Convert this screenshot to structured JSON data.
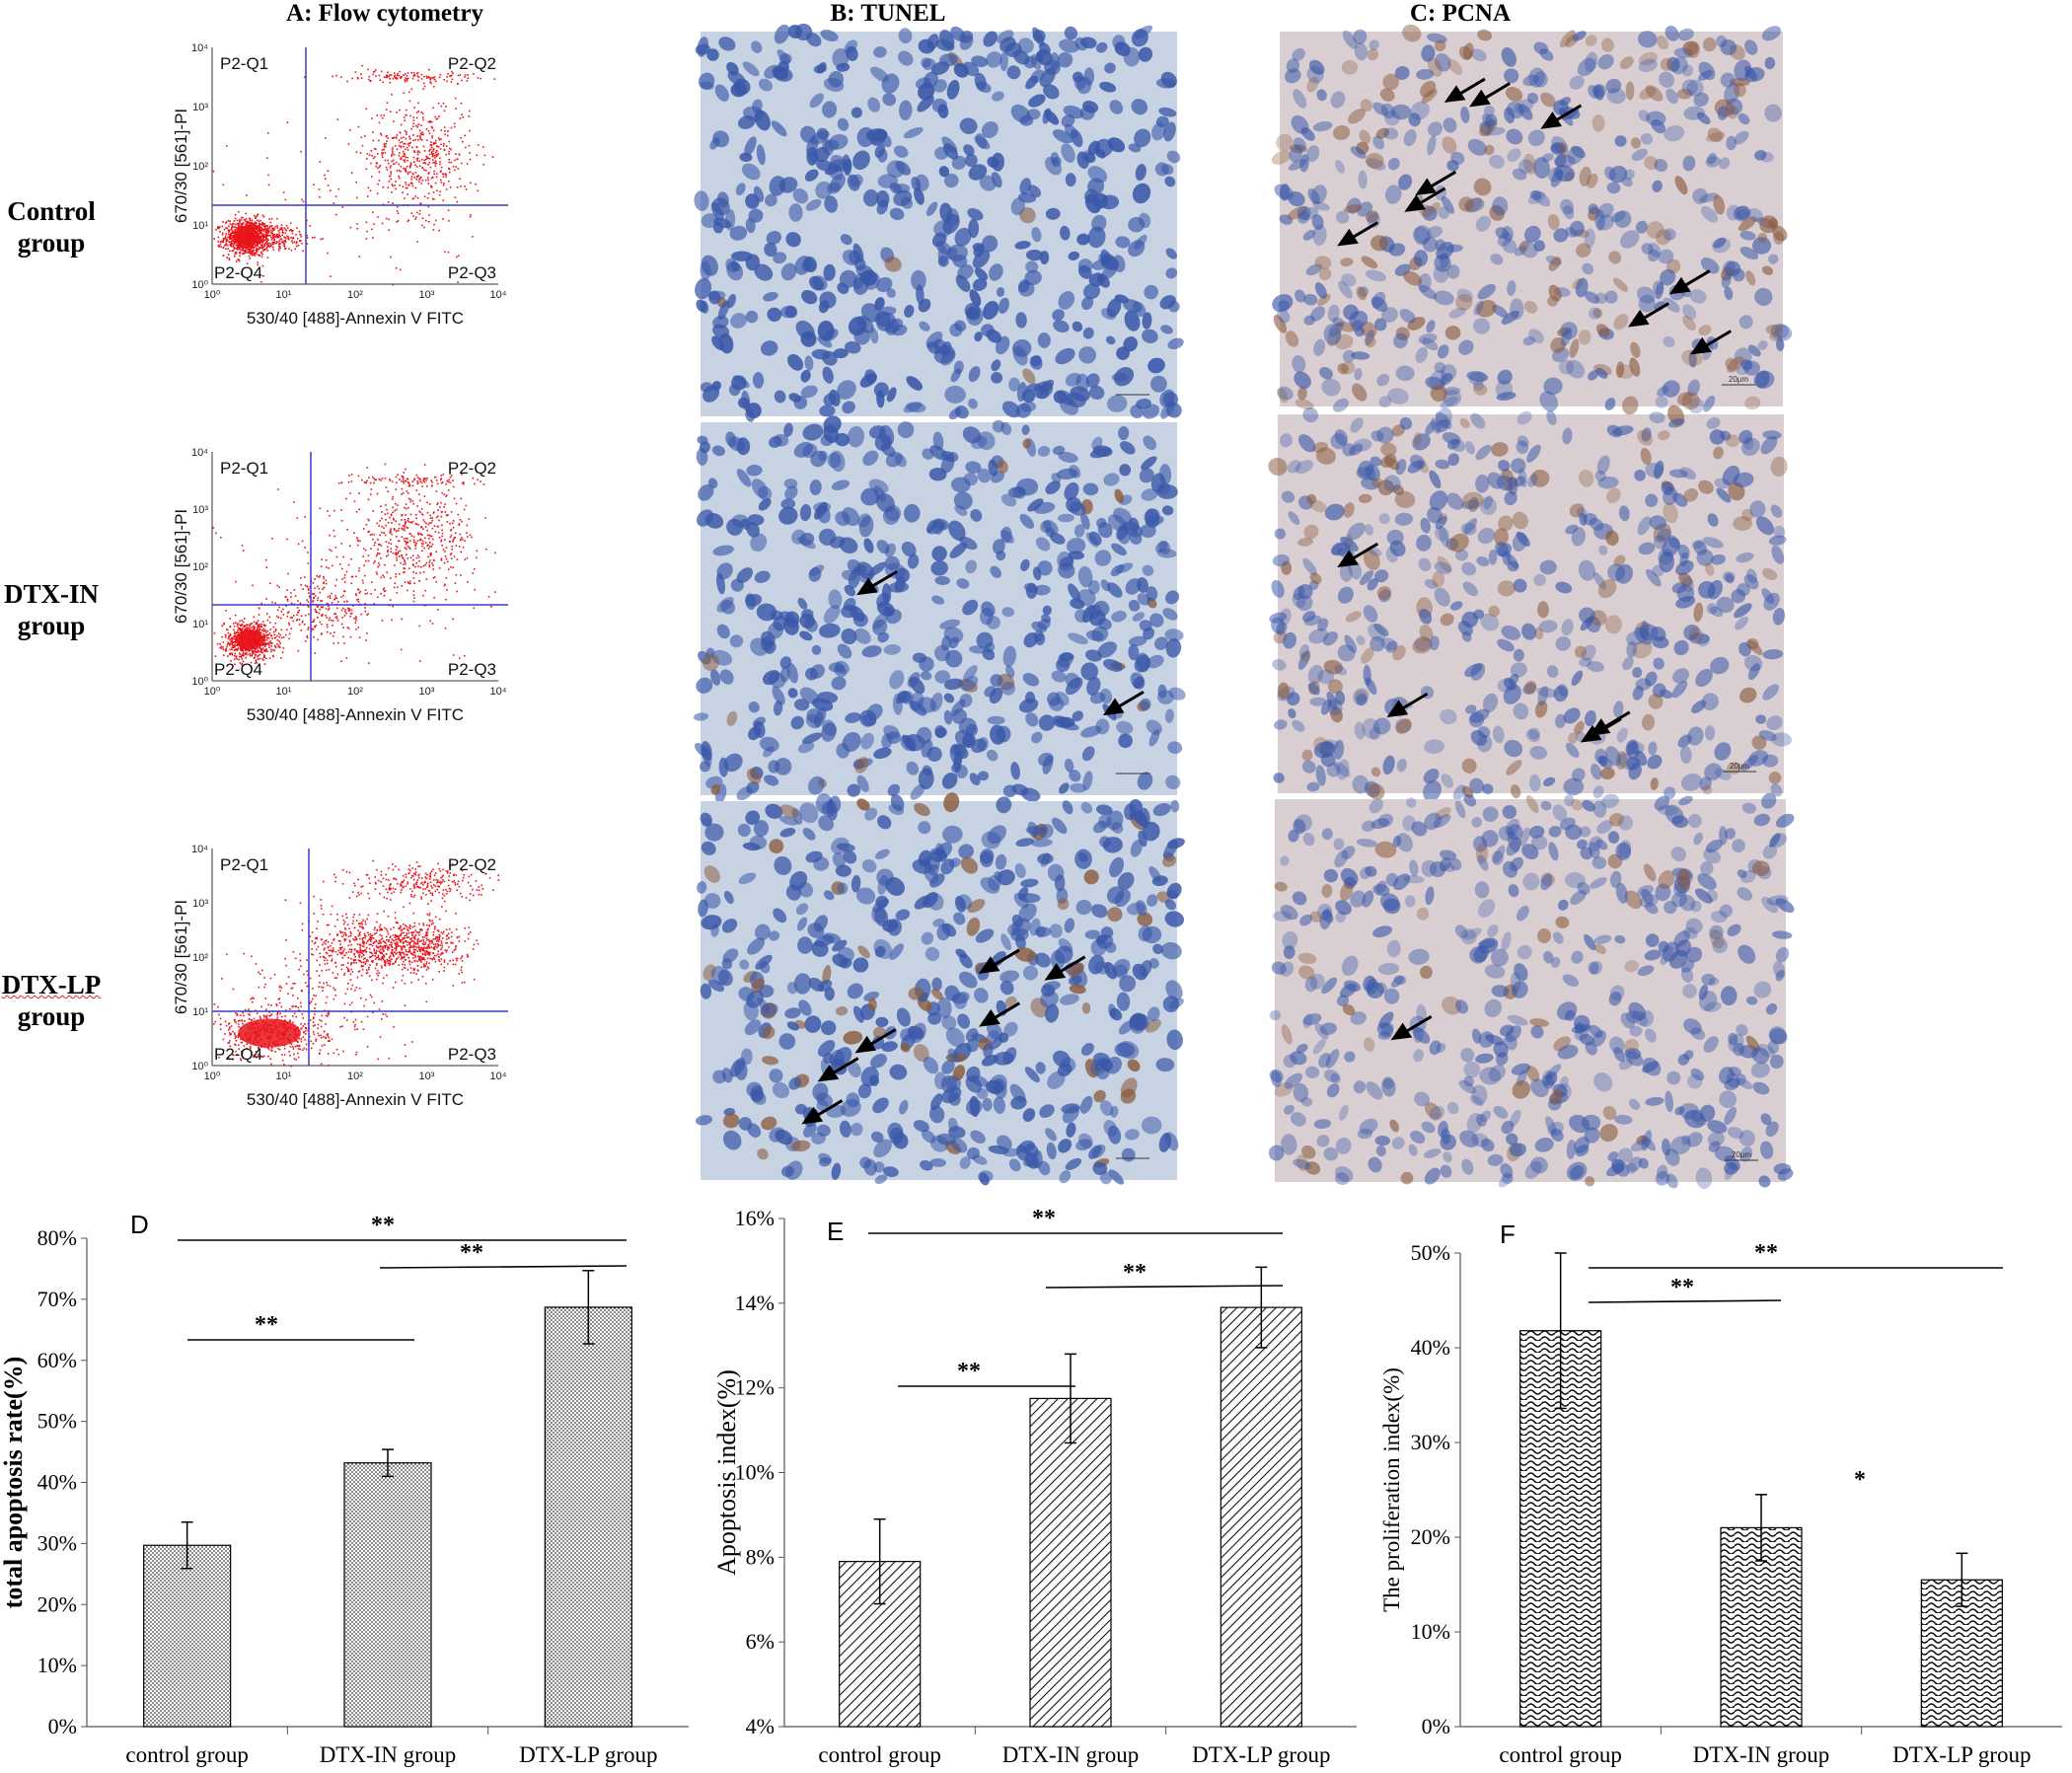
{
  "column_titles": {
    "a": "A: Flow cytometry",
    "b": "B: TUNEL",
    "c": "C: PCNA"
  },
  "row_labels": [
    {
      "line1": "Control",
      "line2": "group"
    },
    {
      "line1": "DTX-IN",
      "line2": "group"
    },
    {
      "line1": "DTX-LP",
      "line2": "group"
    }
  ],
  "flow_cytometry": {
    "x_axis_label": "530/40 [488]-Annexin V FITC",
    "y_axis_label": "670/30 [561]-PI",
    "quadrants": [
      "P2-Q1",
      "P2-Q2",
      "P2-Q3",
      "P2-Q4"
    ],
    "ticks": [
      "10⁰",
      "10¹",
      "10²",
      "10³",
      "10⁴"
    ],
    "event_color": "#e8141b",
    "gate_color": "#3b3bc9"
  },
  "micrographs": {
    "tunel_background": "#c7d3e2",
    "pcna_background": "#d9cfd2",
    "nucleus_color": "#3a57a8",
    "brown_stain_color": "#8a5a3c",
    "scale_bar_text": "20μm",
    "arrows_tunel": [
      0,
      2,
      6
    ],
    "arrows_pcna": [
      9,
      4,
      1
    ]
  },
  "chart_data": [
    {
      "panel": "D",
      "type": "bar",
      "title": "",
      "categories": [
        "control group",
        "DTX-IN group",
        "DTX-LP group"
      ],
      "values": [
        29.7,
        43.2,
        68.7
      ],
      "errors": [
        3.8,
        2.2,
        6.0
      ],
      "unit": "%",
      "ylabel": "total apoptosis rate(%)",
      "ylim": [
        0,
        80
      ],
      "yticks": [
        "0%",
        "10%",
        "20%",
        "30%",
        "40%",
        "50%",
        "60%",
        "70%",
        "80%"
      ],
      "pattern": "dots",
      "significance": [
        {
          "between": [
            "control group",
            "DTX-LP group"
          ],
          "label": "**"
        },
        {
          "between": [
            "DTX-IN group",
            "DTX-LP group"
          ],
          "label": "**"
        },
        {
          "between": [
            "control group",
            "DTX-IN group"
          ],
          "label": "**"
        }
      ]
    },
    {
      "panel": "E",
      "type": "bar",
      "title": "",
      "categories": [
        "control group",
        "DTX-IN group",
        "DTX-LP group"
      ],
      "values": [
        7.9,
        11.75,
        13.9
      ],
      "errors": [
        1.0,
        1.05,
        0.95
      ],
      "unit": "%",
      "ylabel": "Apoptosis index(%)",
      "ylim": [
        4,
        16
      ],
      "yticks": [
        "4%",
        "6%",
        "8%",
        "10%",
        "12%",
        "14%",
        "16%"
      ],
      "pattern": "diagonal",
      "significance": [
        {
          "between": [
            "control group",
            "DTX-LP group"
          ],
          "label": "**"
        },
        {
          "between": [
            "DTX-IN group",
            "DTX-LP group"
          ],
          "label": "**"
        },
        {
          "between": [
            "control group",
            "DTX-IN group"
          ],
          "label": "**"
        }
      ]
    },
    {
      "panel": "F",
      "type": "bar",
      "title": "",
      "categories": [
        "control group",
        "DTX-IN group",
        "DTX-LP group"
      ],
      "values": [
        41.8,
        21.0,
        15.5
      ],
      "errors": [
        8.2,
        3.5,
        2.8
      ],
      "unit": "%",
      "ylabel": "The proliferation index(%)",
      "ylim": [
        0,
        50
      ],
      "yticks": [
        "0%",
        "10%",
        "20%",
        "30%",
        "40%",
        "50%"
      ],
      "pattern": "wave",
      "significance": [
        {
          "between": [
            "control group",
            "DTX-LP group"
          ],
          "label": "**"
        },
        {
          "between": [
            "control group",
            "DTX-IN group"
          ],
          "label": "**"
        },
        {
          "between": [
            "DTX-IN group",
            "DTX-LP group"
          ],
          "label": "*"
        }
      ]
    }
  ]
}
